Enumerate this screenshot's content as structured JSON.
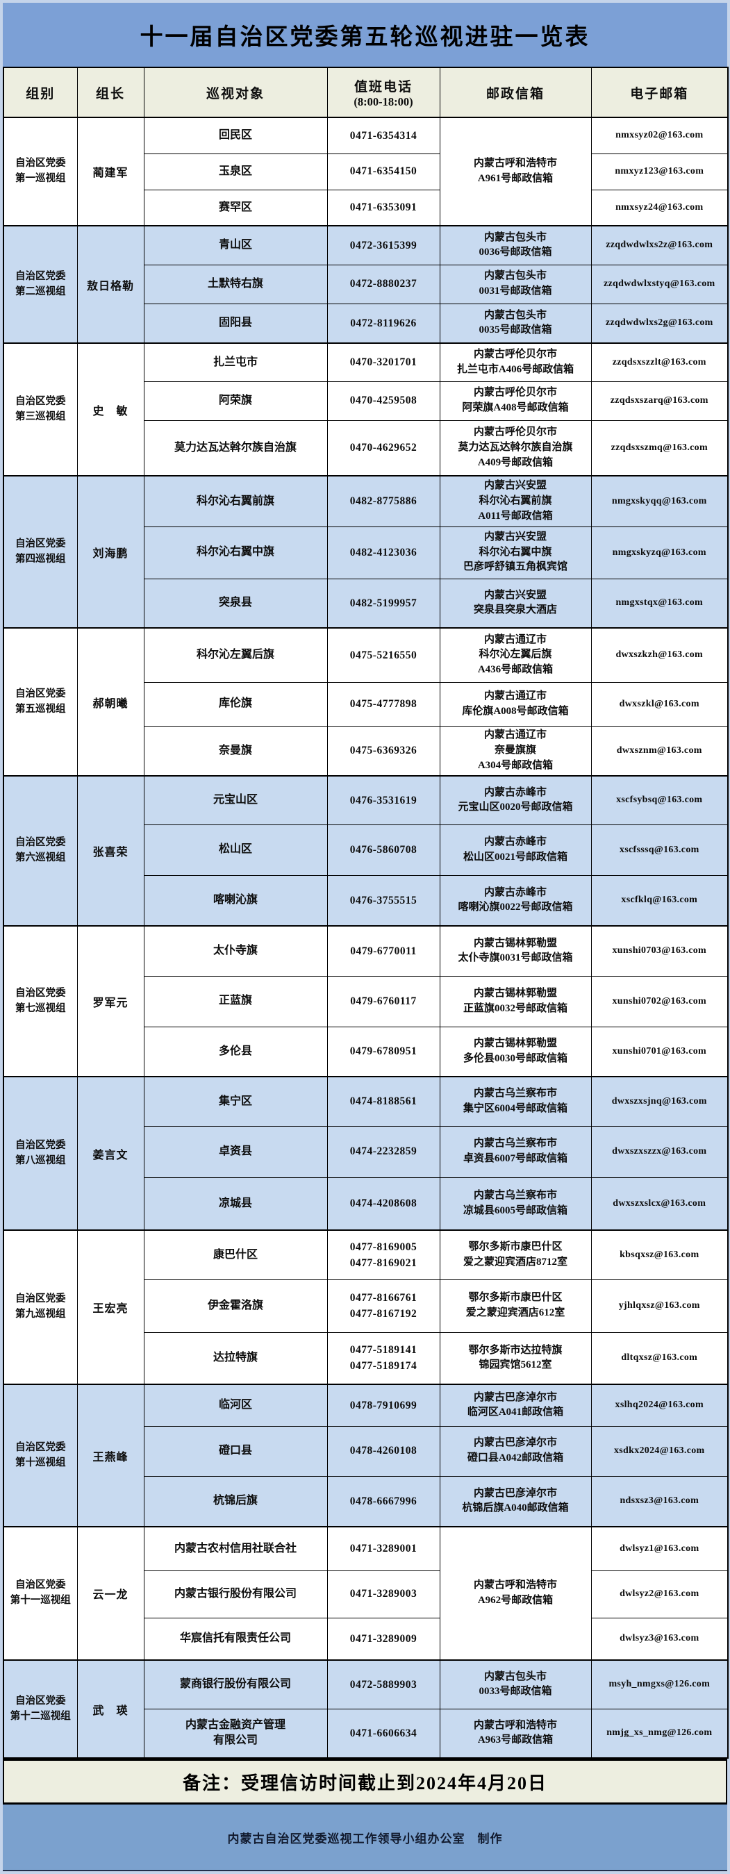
{
  "title": "十一届自治区党委第五轮巡视进驻一览表",
  "header": {
    "group": "组别",
    "leader": "组长",
    "target": "巡视对象",
    "phone_line1": "值班电话",
    "phone_line2": "(8:00-18:00)",
    "postal": "邮政信箱",
    "email": "电子邮箱"
  },
  "groups": [
    {
      "name": [
        "自治区党委",
        "第一巡视组"
      ],
      "leader": "蔺建军",
      "shared_postal": [
        "内蒙古呼和浩特市",
        "A961号邮政信箱"
      ],
      "rows": [
        {
          "target": "回民区",
          "phone": [
            "0471-6354314"
          ],
          "email": "nmxsyz02@163.com"
        },
        {
          "target": "玉泉区",
          "phone": [
            "0471-6354150"
          ],
          "email": "nmxyz123@163.com"
        },
        {
          "target": "赛罕区",
          "phone": [
            "0471-6353091"
          ],
          "email": "nmxsyz24@163.com"
        }
      ]
    },
    {
      "name": [
        "自治区党委",
        "第二巡视组"
      ],
      "leader": "敖日格勒",
      "rows": [
        {
          "target": "青山区",
          "phone": [
            "0472-3615399"
          ],
          "postal": [
            "内蒙古包头市",
            "0036号邮政信箱"
          ],
          "email": "zzqdwdwlxs2z@163.com"
        },
        {
          "target": "土默特右旗",
          "phone": [
            "0472-8880237"
          ],
          "postal": [
            "内蒙古包头市",
            "0031号邮政信箱"
          ],
          "email": "zzqdwdwlxstyq@163.com"
        },
        {
          "target": "固阳县",
          "phone": [
            "0472-8119626"
          ],
          "postal": [
            "内蒙古包头市",
            "0035号邮政信箱"
          ],
          "email": "zzqdwdwlxs2g@163.com"
        }
      ]
    },
    {
      "name": [
        "自治区党委",
        "第三巡视组"
      ],
      "leader": "史　敏",
      "rows": [
        {
          "target": "扎兰屯市",
          "phone": [
            "0470-3201701"
          ],
          "postal": [
            "内蒙古呼伦贝尔市",
            "扎兰屯市A406号邮政信箱"
          ],
          "email": "zzqdsxszzlt@163.com"
        },
        {
          "target": "阿荣旗",
          "phone": [
            "0470-4259508"
          ],
          "postal": [
            "内蒙古呼伦贝尔市",
            "阿荣旗A408号邮政信箱"
          ],
          "email": "zzqdsxszarq@163.com"
        },
        {
          "target": "莫力达瓦达斡尔族自治旗",
          "phone": [
            "0470-4629652"
          ],
          "postal": [
            "内蒙古呼伦贝尔市",
            "莫力达瓦达斡尔族自治旗",
            "A409号邮政信箱"
          ],
          "email": "zzqdsxszmq@163.com"
        }
      ]
    },
    {
      "name": [
        "自治区党委",
        "第四巡视组"
      ],
      "leader": "刘海鹏",
      "rows": [
        {
          "target": "科尔沁右翼前旗",
          "phone": [
            "0482-8775886"
          ],
          "postal": [
            "内蒙古兴安盟",
            "科尔沁右翼前旗",
            "A011号邮政信箱"
          ],
          "email": "nmgxskyqq@163.com"
        },
        {
          "target": "科尔沁右翼中旗",
          "phone": [
            "0482-4123036"
          ],
          "postal": [
            "内蒙古兴安盟",
            "科尔沁右翼中旗",
            "巴彦呼舒镇五角枫宾馆"
          ],
          "email": "nmgxskyzq@163.com"
        },
        {
          "target": "突泉县",
          "phone": [
            "0482-5199957"
          ],
          "postal": [
            "内蒙古兴安盟",
            "突泉县突泉大酒店"
          ],
          "email": "nmgxstqx@163.com"
        }
      ]
    },
    {
      "name": [
        "自治区党委",
        "第五巡视组"
      ],
      "leader": "郝朝曦",
      "rows": [
        {
          "target": "科尔沁左翼后旗",
          "phone": [
            "0475-5216550"
          ],
          "postal": [
            "内蒙古通辽市",
            "科尔沁左翼后旗",
            "A436号邮政信箱"
          ],
          "email": "dwxszkzh@163.com"
        },
        {
          "target": "库伦旗",
          "phone": [
            "0475-4777898"
          ],
          "postal": [
            "内蒙古通辽市",
            "库伦旗A008号邮政信箱"
          ],
          "email": "dwxszkl@163.com"
        },
        {
          "target": "奈曼旗",
          "phone": [
            "0475-6369326"
          ],
          "postal": [
            "内蒙古通辽市",
            "奈曼旗旗",
            "A304号邮政信箱"
          ],
          "email": "dwxsznm@163.com"
        }
      ]
    },
    {
      "name": [
        "自治区党委",
        "第六巡视组"
      ],
      "leader": "张喜荣",
      "rows": [
        {
          "target": "元宝山区",
          "phone": [
            "0476-3531619"
          ],
          "postal": [
            "内蒙古赤峰市",
            "元宝山区0020号邮政信箱"
          ],
          "email": "xscfsybsq@163.com"
        },
        {
          "target": "松山区",
          "phone": [
            "0476-5860708"
          ],
          "postal": [
            "内蒙古赤峰市",
            "松山区0021号邮政信箱"
          ],
          "email": "xscfsssq@163.com"
        },
        {
          "target": "喀喇沁旗",
          "phone": [
            "0476-3755515"
          ],
          "postal": [
            "内蒙古赤峰市",
            "喀喇沁旗0022号邮政信箱"
          ],
          "email": "xscfklq@163.com"
        }
      ]
    },
    {
      "name": [
        "自治区党委",
        "第七巡视组"
      ],
      "leader": "罗军元",
      "rows": [
        {
          "target": "太仆寺旗",
          "phone": [
            "0479-6770011"
          ],
          "postal": [
            "内蒙古锡林郭勒盟",
            "太仆寺旗0031号邮政信箱"
          ],
          "email": "xunshi0703@163.com"
        },
        {
          "target": "正蓝旗",
          "phone": [
            "0479-6760117"
          ],
          "postal": [
            "内蒙古锡林郭勒盟",
            "正蓝旗0032号邮政信箱"
          ],
          "email": "xunshi0702@163.com"
        },
        {
          "target": "多伦县",
          "phone": [
            "0479-6780951"
          ],
          "postal": [
            "内蒙古锡林郭勒盟",
            "多伦县0030号邮政信箱"
          ],
          "email": "xunshi0701@163.com"
        }
      ]
    },
    {
      "name": [
        "自治区党委",
        "第八巡视组"
      ],
      "leader": "姜言文",
      "rows": [
        {
          "target": "集宁区",
          "phone": [
            "0474-8188561"
          ],
          "postal": [
            "内蒙古乌兰察布市",
            "集宁区6004号邮政信箱"
          ],
          "email": "dwxszxsjnq@163.com"
        },
        {
          "target": "卓资县",
          "phone": [
            "0474-2232859"
          ],
          "postal": [
            "内蒙古乌兰察布市",
            "卓资县6007号邮政信箱"
          ],
          "email": "dwxszxszzx@163.com"
        },
        {
          "target": "凉城县",
          "phone": [
            "0474-4208608"
          ],
          "postal": [
            "内蒙古乌兰察布市",
            "凉城县6005号邮政信箱"
          ],
          "email": "dwxszxslcx@163.com"
        }
      ]
    },
    {
      "name": [
        "自治区党委",
        "第九巡视组"
      ],
      "leader": "王宏亮",
      "rows": [
        {
          "target": "康巴什区",
          "phone": [
            "0477-8169005",
            "0477-8169021"
          ],
          "postal": [
            "鄂尔多斯市康巴什区",
            "爱之蒙迎宾酒店8712室"
          ],
          "email": "kbsqxsz@163.com"
        },
        {
          "target": "伊金霍洛旗",
          "phone": [
            "0477-8166761",
            "0477-8167192"
          ],
          "postal": [
            "鄂尔多斯市康巴什区",
            "爱之蒙迎宾酒店612室"
          ],
          "email": "yjhlqxsz@163.com"
        },
        {
          "target": "达拉特旗",
          "phone": [
            "0477-5189141",
            "0477-5189174"
          ],
          "postal": [
            "鄂尔多斯市达拉特旗",
            "锦园宾馆5612室"
          ],
          "email": "dltqxsz@163.com"
        }
      ]
    },
    {
      "name": [
        "自治区党委",
        "第十巡视组"
      ],
      "leader": "王燕峰",
      "rows": [
        {
          "target": "临河区",
          "phone": [
            "0478-7910699"
          ],
          "postal": [
            "内蒙古巴彦淖尔市",
            "临河区A041邮政信箱"
          ],
          "email": "xslhq2024@163.com"
        },
        {
          "target": "磴口县",
          "phone": [
            "0478-4260108"
          ],
          "postal": [
            "内蒙古巴彦淖尔市",
            "磴口县A042邮政信箱"
          ],
          "email": "xsdkx2024@163.com"
        },
        {
          "target": "杭锦后旗",
          "phone": [
            "0478-6667996"
          ],
          "postal": [
            "内蒙古巴彦淖尔市",
            "杭锦后旗A040邮政信箱"
          ],
          "email": "ndsxsz3@163.com"
        }
      ]
    },
    {
      "name": [
        "自治区党委",
        "第十一巡视组"
      ],
      "leader": "云一龙",
      "shared_postal": [
        "内蒙古呼和浩特市",
        "A962号邮政信箱"
      ],
      "rows": [
        {
          "target": "内蒙古农村信用社联合社",
          "phone": [
            "0471-3289001"
          ],
          "email": "dwlsyz1@163.com"
        },
        {
          "target": "内蒙古银行股份有限公司",
          "phone": [
            "0471-3289003"
          ],
          "email": "dwlsyz2@163.com"
        },
        {
          "target": "华宸信托有限责任公司",
          "phone": [
            "0471-3289009"
          ],
          "email": "dwlsyz3@163.com"
        }
      ]
    },
    {
      "name": [
        "自治区党委",
        "第十二巡视组"
      ],
      "leader": "武　瑛",
      "rows": [
        {
          "target": "蒙商银行股份有限公司",
          "phone": [
            "0472-5889903"
          ],
          "postal": [
            "内蒙古包头市",
            "0033号邮政信箱"
          ],
          "email": "msyh_nmgxs@126.com"
        },
        {
          "target": [
            "内蒙古金融资产管理",
            "有限公司"
          ],
          "phone": [
            "0471-6606634"
          ],
          "postal": [
            "内蒙古呼和浩特市",
            "A963号邮政信箱"
          ],
          "email": "nmjg_xs_nmg@126.com"
        }
      ]
    }
  ],
  "note": "备注：受理信访时间截止到2024年4月20日",
  "footer": "内蒙古自治区党委巡视工作领导小组办公室　制作",
  "colors": {
    "title_bg": "#7ca0d6",
    "footer_bg": "#7ba1ce",
    "header_bg": "#edeee0",
    "band_blue": "#c8daf0",
    "band_white": "#ffffff",
    "note_bg": "#edeee0",
    "border": "#000000"
  }
}
